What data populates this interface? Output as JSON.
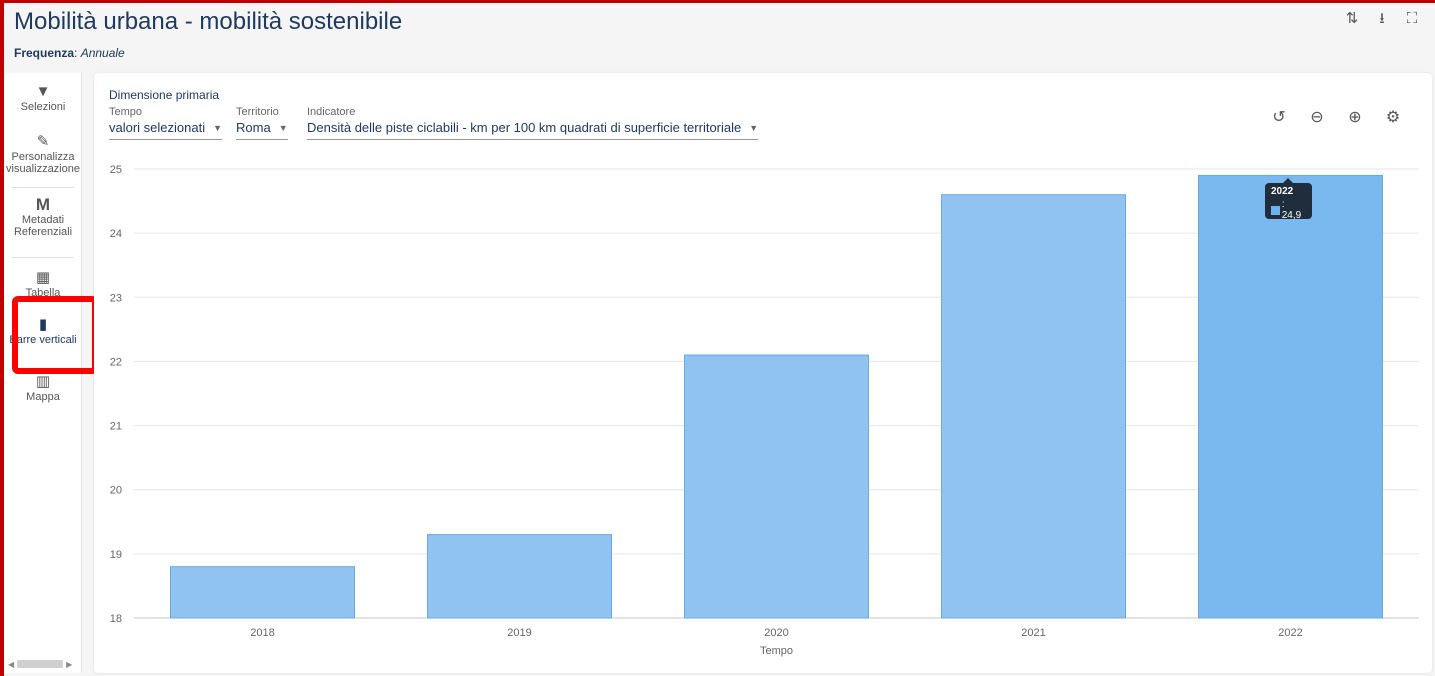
{
  "header": {
    "title": "Mobilità urbana - mobilità sostenibile",
    "frequency_label": "Frequenza",
    "frequency_value": "Annuale",
    "icons": [
      "swap-icon",
      "download-icon",
      "fullscreen-icon"
    ]
  },
  "sidebar": {
    "items": [
      {
        "label": "Selezioni",
        "icon": "filter-icon"
      },
      {
        "label": "Personalizza visualizzazione",
        "icon": "pencil-icon"
      },
      {
        "label": "Metadati Referenziali",
        "icon": "metadata-icon"
      },
      {
        "label": "Tabella",
        "icon": "table-icon"
      },
      {
        "label": "Barre verticali",
        "icon": "bar-chart-icon"
      },
      {
        "label": "Mappa",
        "icon": "map-icon"
      }
    ],
    "active": "Barre verticali"
  },
  "filters": {
    "primary_dimension": "Dimensione primaria",
    "tempo_label": "Tempo",
    "tempo_value": "valori selezionati",
    "territorio_label": "Territorio",
    "territorio_value": "Roma",
    "indicatore_label": "Indicatore",
    "indicatore_value": "Densità delle piste ciclabili - km per 100 km quadrati di superficie territoriale"
  },
  "chart_tools": [
    "zoom-reset-icon",
    "zoom-out-icon",
    "zoom-in-icon",
    "settings-icon"
  ],
  "tooltip": {
    "year": "2022",
    "value": ": 24,9"
  },
  "chart_data": {
    "type": "bar",
    "categories": [
      "2018",
      "2019",
      "2020",
      "2021",
      "2022"
    ],
    "values": [
      18.8,
      19.3,
      22.1,
      24.6,
      24.9
    ],
    "xlabel": "Tempo",
    "ylabel": "",
    "ylim": [
      18,
      25
    ],
    "yticks": [
      18,
      19,
      20,
      21,
      22,
      23,
      24,
      25
    ],
    "grid": true,
    "colors": {
      "bar": "#90c3f0",
      "bar_hover": "#7ab8f0",
      "bar_stroke": "#6aa9e3"
    },
    "highlighted_category": "2022"
  }
}
